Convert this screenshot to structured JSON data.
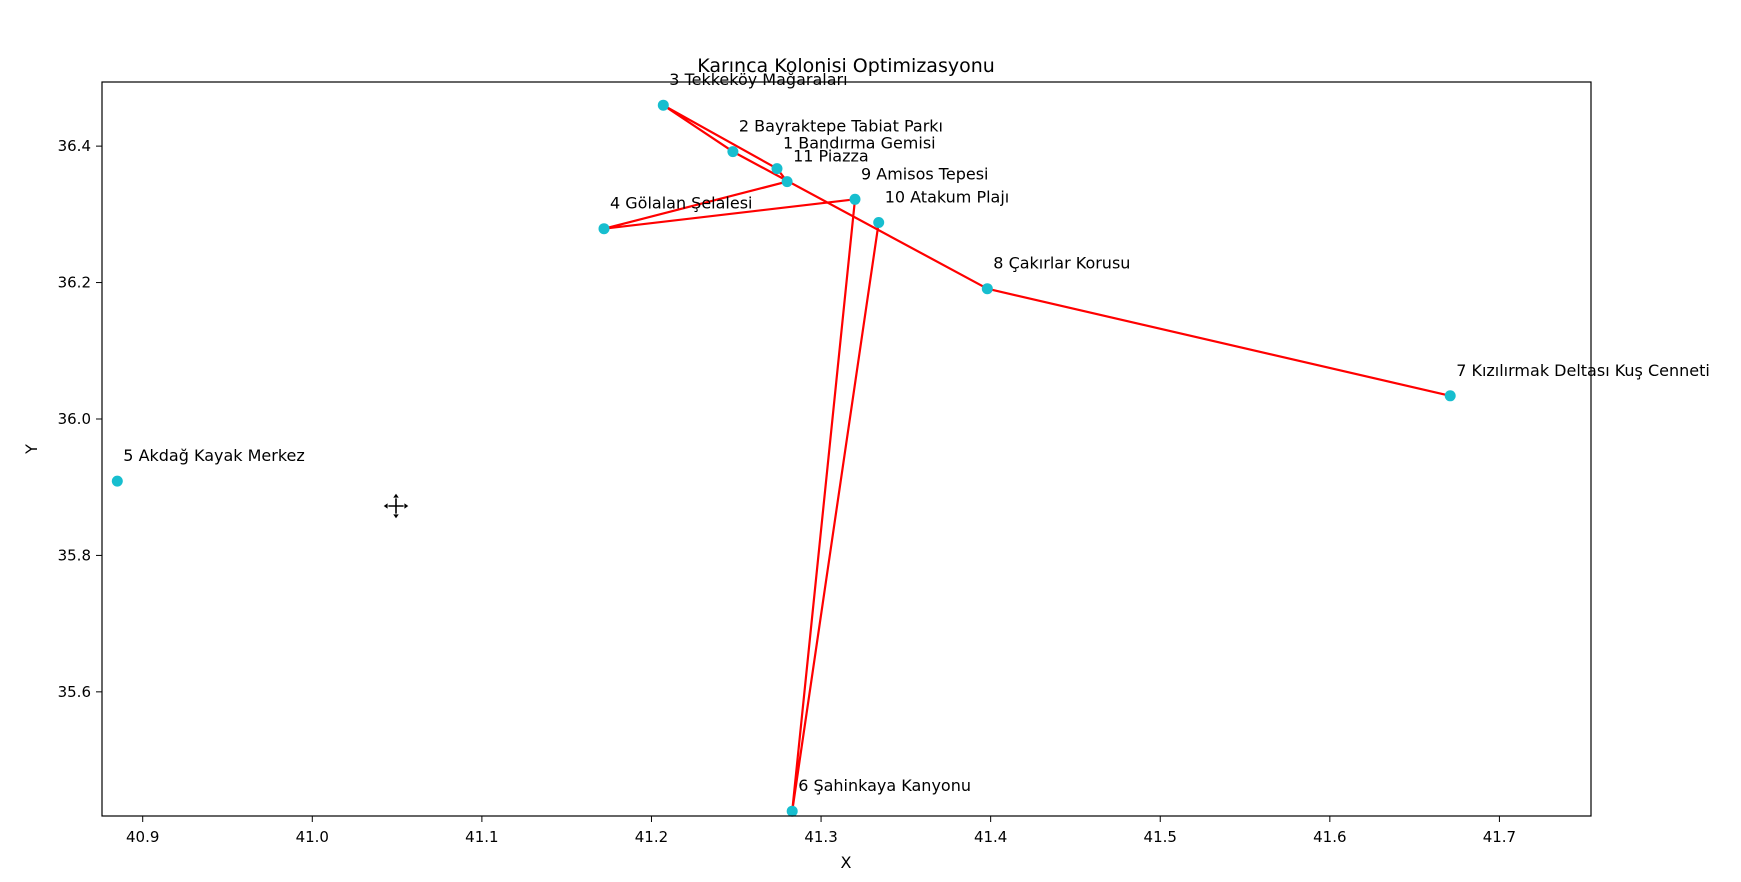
{
  "chart_data": {
    "type": "line",
    "title": "Karınca Kolonisi Optimizasyonu",
    "xlabel": "X",
    "ylabel": "Y",
    "xlim": [
      40.876,
      41.754
    ],
    "ylim": [
      35.418,
      36.494
    ],
    "xticks": [
      "40.9",
      "41.0",
      "41.1",
      "41.2",
      "41.3",
      "41.4",
      "41.5",
      "41.6",
      "41.7"
    ],
    "yticks": [
      "35.6",
      "35.8",
      "36.0",
      "36.2",
      "36.4"
    ],
    "grid": false,
    "line_color": "#ff0000",
    "marker_color": "#17becf",
    "points": [
      {
        "label": "3 Tekkeköy Mağaraları",
        "x": 41.207,
        "y": 36.46
      },
      {
        "label": "2 Bayraktepe Tabiat Parkı",
        "x": 41.248,
        "y": 36.392
      },
      {
        "label": "1 Bandırma Gemisi",
        "x": 41.274,
        "y": 36.367
      },
      {
        "label": "11 Piazza",
        "x": 41.28,
        "y": 36.348
      },
      {
        "label": "9 Amisos Tepesi",
        "x": 41.32,
        "y": 36.322
      },
      {
        "label": "10 Atakum Plajı",
        "x": 41.334,
        "y": 36.288
      },
      {
        "label": "8 Çakırlar Korusu",
        "x": 41.398,
        "y": 36.191
      },
      {
        "label": "7 Kızılırmak Deltası Kuş Cenneti",
        "x": 41.671,
        "y": 36.034
      },
      {
        "label": "5 Akdağ Kayak Merkez",
        "x": 40.885,
        "y": 35.909
      },
      {
        "label": "6 Şahinkaya Kanyonu",
        "x": 41.283,
        "y": 35.425
      },
      {
        "label": "4 Gölalan Şelalesi",
        "x": 41.172,
        "y": 36.279
      }
    ],
    "route": [
      5,
      9,
      4,
      10,
      3,
      2,
      0,
      1,
      6,
      7
    ]
  },
  "cursor": {
    "icon": "move-cursor-icon"
  }
}
